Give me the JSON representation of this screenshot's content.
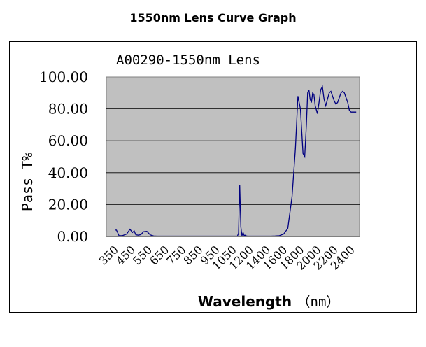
{
  "page": {
    "title": "1550nm Lens Curve Graph"
  },
  "chart_data": {
    "type": "line",
    "title": "A00290-1550nm Lens",
    "xlabel": "Wavelength",
    "xunit": "（nm）",
    "ylabel": "Pass T%",
    "ylim": [
      0,
      100
    ],
    "yticks": [
      "0.00",
      "20.00",
      "40.00",
      "60.00",
      "80.00",
      "100.00"
    ],
    "xticks": [
      "350",
      "450",
      "550",
      "650",
      "750",
      "850",
      "950",
      "1050",
      "1200",
      "1400",
      "1600",
      "1800",
      "2000",
      "2200",
      "2400"
    ],
    "grid": "horizontal",
    "plot_background": "#c0c0c0",
    "series": [
      {
        "color": "#000080",
        "x": [
          350,
          360,
          375,
          395,
          420,
          440,
          455,
          465,
          475,
          490,
          505,
          520,
          540,
          560,
          580,
          600,
          650,
          750,
          850,
          950,
          1050,
          1090,
          1100,
          1110,
          1120,
          1130,
          1140,
          1150,
          1160,
          1170,
          1180,
          1200,
          1250,
          1300,
          1350,
          1400,
          1450,
          1500,
          1550,
          1600,
          1650,
          1700,
          1740,
          1770,
          1800,
          1830,
          1850,
          1870,
          1885,
          1900,
          1915,
          1930,
          1945,
          1960,
          1975,
          1990,
          2000,
          2020,
          2040,
          2060,
          2080,
          2100,
          2120,
          2140,
          2160,
          2180,
          2200,
          2220,
          2240,
          2260,
          2280,
          2300,
          2320,
          2340,
          2360,
          2380,
          2400,
          2420,
          2440,
          2460
        ],
        "y": [
          4,
          4,
          0.5,
          0.5,
          1.5,
          4.5,
          2.5,
          3.5,
          1.0,
          0.8,
          1.2,
          3.0,
          3.2,
          1.0,
          0.3,
          0.2,
          0.2,
          0.2,
          0.2,
          0.2,
          0.2,
          0.2,
          2.0,
          32,
          6.0,
          0.5,
          2.5,
          0.5,
          0.8,
          0.3,
          0.2,
          0.2,
          0.2,
          0.2,
          0.2,
          0.2,
          0.2,
          0.3,
          0.5,
          1.5,
          5.0,
          25,
          55,
          88,
          80,
          52,
          50,
          70,
          90,
          92,
          86,
          84,
          90,
          89,
          82,
          79,
          77,
          84,
          92,
          94,
          86,
          82,
          86,
          90,
          91,
          88,
          85,
          83,
          84,
          87,
          90,
          91,
          90,
          87,
          84,
          79,
          78,
          78,
          78,
          78
        ]
      }
    ]
  }
}
